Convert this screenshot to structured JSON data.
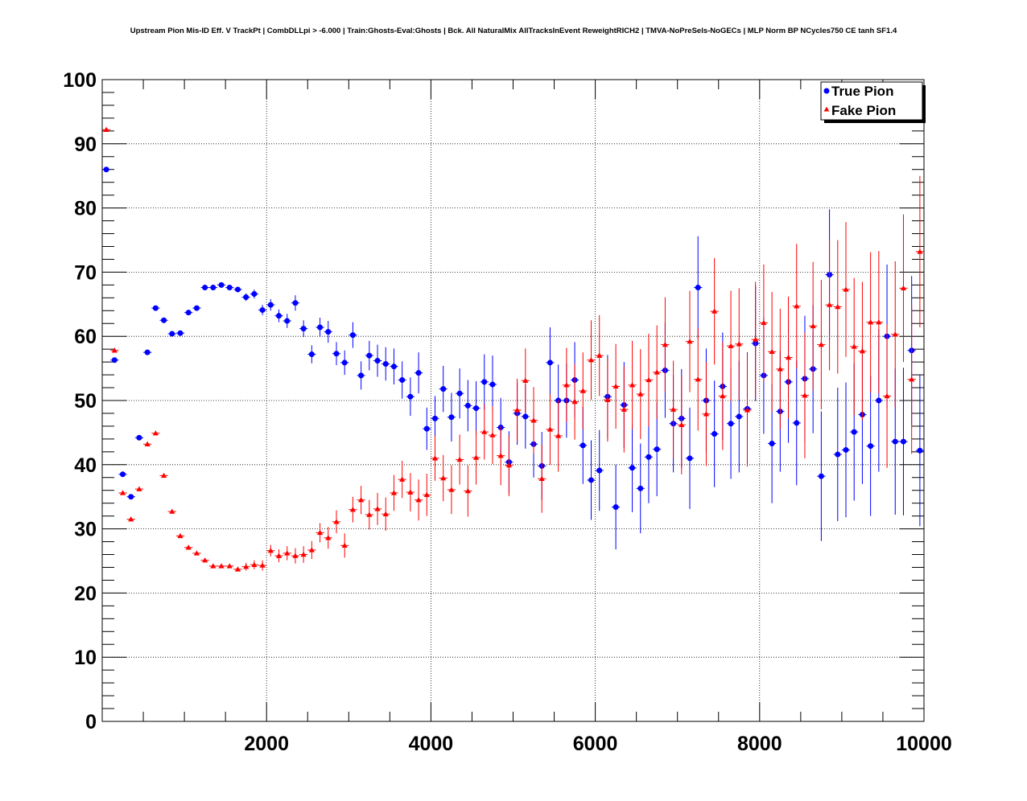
{
  "chart_data": {
    "type": "scatter",
    "title": "Upstream Pion Mis-ID Eff. V TrackPt | CombDLLpi > -6.000 | Train:Ghosts-Eval:Ghosts | Bck. All NaturalMix AllTracksInEvent ReweightRICH2 | TMVA-NoPreSels-NoGECs | MLP Norm BP NCycles750 CE tanh SF1.4",
    "xlabel": "",
    "ylabel": "",
    "xlim": [
      0,
      10000
    ],
    "ylim": [
      0,
      100
    ],
    "x_ticks": [
      "2000",
      "4000",
      "6000",
      "8000",
      "10000"
    ],
    "y_ticks": [
      "0",
      "10",
      "20",
      "30",
      "40",
      "50",
      "60",
      "70",
      "80",
      "90",
      "100"
    ],
    "grid": true,
    "legend_position": "top-right",
    "series": [
      {
        "name": "True Pion",
        "color": "#0000ff",
        "marker": "circle",
        "points": [
          [
            50,
            86.0,
            0
          ],
          [
            150,
            56.3,
            0
          ],
          [
            250,
            38.5,
            0
          ],
          [
            350,
            35.0,
            0
          ],
          [
            450,
            44.2,
            0
          ],
          [
            550,
            57.5,
            0
          ],
          [
            650,
            64.4,
            0
          ],
          [
            750,
            62.5,
            0
          ],
          [
            850,
            60.4,
            0
          ],
          [
            950,
            60.5,
            0
          ],
          [
            1050,
            63.7,
            0
          ],
          [
            1150,
            64.4,
            0
          ],
          [
            1250,
            67.6,
            0
          ],
          [
            1350,
            67.6,
            0
          ],
          [
            1450,
            68.0,
            0
          ],
          [
            1550,
            67.6,
            0
          ],
          [
            1650,
            67.3,
            0
          ],
          [
            1750,
            66.1,
            0.6
          ],
          [
            1850,
            66.6,
            0.7
          ],
          [
            1950,
            64.1,
            0.8
          ],
          [
            2050,
            64.9,
            0.9
          ],
          [
            2150,
            63.2,
            1.0
          ],
          [
            2250,
            62.4,
            1.1
          ],
          [
            2350,
            65.2,
            1.2
          ],
          [
            2450,
            61.2,
            1.3
          ],
          [
            2550,
            57.2,
            1.4
          ],
          [
            2650,
            61.4,
            1.5
          ],
          [
            2750,
            60.7,
            1.7
          ],
          [
            2850,
            57.3,
            1.8
          ],
          [
            2950,
            55.9,
            1.9
          ],
          [
            3050,
            60.2,
            2.0
          ],
          [
            3150,
            53.9,
            2.2
          ],
          [
            3250,
            57.0,
            2.3
          ],
          [
            3350,
            56.2,
            2.5
          ],
          [
            3450,
            55.7,
            2.6
          ],
          [
            3550,
            55.3,
            2.8
          ],
          [
            3650,
            53.2,
            2.9
          ],
          [
            3750,
            50.6,
            3.0
          ],
          [
            3850,
            54.3,
            3.2
          ],
          [
            3950,
            45.6,
            3.3
          ],
          [
            4050,
            47.2,
            3.5
          ],
          [
            4150,
            51.8,
            3.6
          ],
          [
            4250,
            47.4,
            3.8
          ],
          [
            4350,
            51.1,
            3.9
          ],
          [
            4450,
            49.2,
            4.0
          ],
          [
            4550,
            48.8,
            4.2
          ],
          [
            4650,
            52.9,
            4.3
          ],
          [
            4750,
            52.5,
            4.5
          ],
          [
            4850,
            45.8,
            4.6
          ],
          [
            4950,
            40.4,
            4.8
          ],
          [
            5050,
            48.0,
            4.9
          ],
          [
            5150,
            47.5,
            5.0
          ],
          [
            5250,
            43.2,
            5.2
          ],
          [
            5350,
            39.8,
            5.3
          ],
          [
            5450,
            55.9,
            5.5
          ],
          [
            5550,
            50.0,
            5.6
          ],
          [
            5650,
            50.0,
            5.8
          ],
          [
            5750,
            53.2,
            5.9
          ],
          [
            5850,
            43.0,
            6.0
          ],
          [
            5950,
            37.6,
            6.2
          ],
          [
            6050,
            39.1,
            6.3
          ],
          [
            6150,
            50.6,
            6.5
          ],
          [
            6250,
            33.4,
            6.6
          ],
          [
            6350,
            49.3,
            6.7
          ],
          [
            6450,
            39.5,
            6.9
          ],
          [
            6550,
            36.3,
            7.0
          ],
          [
            6650,
            41.2,
            7.2
          ],
          [
            6750,
            42.4,
            7.3
          ],
          [
            6850,
            54.7,
            7.4
          ],
          [
            6950,
            46.4,
            7.6
          ],
          [
            7050,
            47.2,
            7.7
          ],
          [
            7150,
            41.0,
            7.9
          ],
          [
            7250,
            67.6,
            8.0
          ],
          [
            7350,
            50.0,
            8.1
          ],
          [
            7450,
            44.8,
            8.3
          ],
          [
            7550,
            52.2,
            8.4
          ],
          [
            7650,
            46.4,
            8.6
          ],
          [
            7750,
            47.5,
            8.7
          ],
          [
            7850,
            48.7,
            8.8
          ],
          [
            7950,
            58.9,
            9.0
          ],
          [
            8050,
            53.9,
            9.1
          ],
          [
            8150,
            43.3,
            9.3
          ],
          [
            8250,
            48.3,
            9.4
          ],
          [
            8350,
            52.9,
            9.5
          ],
          [
            8450,
            46.5,
            9.7
          ],
          [
            8550,
            53.4,
            9.8
          ],
          [
            8650,
            54.9,
            10.0
          ],
          [
            8750,
            38.2,
            10.1
          ],
          [
            8850,
            69.6,
            10.2
          ],
          [
            8950,
            41.6,
            10.4
          ],
          [
            9050,
            42.3,
            10.5
          ],
          [
            9150,
            45.1,
            10.7
          ],
          [
            9250,
            47.8,
            10.8
          ],
          [
            9350,
            42.9,
            10.9
          ],
          [
            9450,
            50.0,
            11.1
          ],
          [
            9550,
            60.0,
            11.2
          ],
          [
            9650,
            43.6,
            11.4
          ],
          [
            9750,
            43.6,
            11.5
          ],
          [
            9850,
            57.8,
            11.6
          ],
          [
            9950,
            42.2,
            11.8
          ]
        ]
      },
      {
        "name": "Fake Pion",
        "color": "#ff0000",
        "marker": "triangle",
        "points": [
          [
            50,
            92.2,
            0
          ],
          [
            150,
            57.8,
            0
          ],
          [
            250,
            35.6,
            0
          ],
          [
            350,
            31.5,
            0
          ],
          [
            450,
            36.2,
            0
          ],
          [
            550,
            43.2,
            0
          ],
          [
            650,
            44.9,
            0
          ],
          [
            750,
            38.3,
            0
          ],
          [
            850,
            32.7,
            0
          ],
          [
            950,
            28.9,
            0
          ],
          [
            1050,
            27.1,
            0
          ],
          [
            1150,
            26.2,
            0
          ],
          [
            1250,
            25.1,
            0
          ],
          [
            1350,
            24.2,
            0
          ],
          [
            1450,
            24.2,
            0
          ],
          [
            1550,
            24.2,
            0
          ],
          [
            1650,
            23.7,
            0
          ],
          [
            1750,
            24.1,
            0.6
          ],
          [
            1850,
            24.4,
            0.7
          ],
          [
            1950,
            24.3,
            0.8
          ],
          [
            2050,
            26.6,
            0.9
          ],
          [
            2150,
            25.8,
            1.0
          ],
          [
            2250,
            26.2,
            1.1
          ],
          [
            2350,
            25.8,
            1.2
          ],
          [
            2450,
            26.0,
            1.3
          ],
          [
            2550,
            26.7,
            1.4
          ],
          [
            2650,
            29.4,
            1.5
          ],
          [
            2750,
            28.6,
            1.7
          ],
          [
            2850,
            31.1,
            1.8
          ],
          [
            2950,
            27.4,
            1.9
          ],
          [
            3050,
            33.0,
            2.0
          ],
          [
            3150,
            34.5,
            2.2
          ],
          [
            3250,
            32.2,
            2.3
          ],
          [
            3350,
            33.1,
            2.5
          ],
          [
            3450,
            32.3,
            2.6
          ],
          [
            3550,
            35.6,
            2.8
          ],
          [
            3650,
            37.7,
            2.9
          ],
          [
            3750,
            35.7,
            3.0
          ],
          [
            3850,
            34.5,
            3.2
          ],
          [
            3950,
            35.3,
            3.3
          ],
          [
            4050,
            41.0,
            3.5
          ],
          [
            4150,
            37.9,
            3.6
          ],
          [
            4250,
            36.1,
            3.8
          ],
          [
            4350,
            40.8,
            3.9
          ],
          [
            4450,
            35.9,
            4.0
          ],
          [
            4550,
            41.1,
            4.2
          ],
          [
            4650,
            45.1,
            4.3
          ],
          [
            4750,
            44.6,
            4.5
          ],
          [
            4850,
            41.4,
            4.6
          ],
          [
            4950,
            39.9,
            4.8
          ],
          [
            5050,
            48.5,
            4.9
          ],
          [
            5150,
            53.1,
            5.0
          ],
          [
            5250,
            46.9,
            5.2
          ],
          [
            5350,
            37.8,
            5.3
          ],
          [
            5450,
            45.5,
            5.5
          ],
          [
            5550,
            44.5,
            5.6
          ],
          [
            5650,
            52.4,
            5.8
          ],
          [
            5750,
            49.8,
            5.9
          ],
          [
            5850,
            51.5,
            6.0
          ],
          [
            5950,
            56.3,
            6.2
          ],
          [
            6050,
            57.0,
            6.3
          ],
          [
            6150,
            50.1,
            6.5
          ],
          [
            6250,
            52.2,
            6.6
          ],
          [
            6350,
            48.6,
            6.7
          ],
          [
            6450,
            52.4,
            6.9
          ],
          [
            6550,
            51.0,
            7.0
          ],
          [
            6650,
            53.2,
            7.2
          ],
          [
            6750,
            54.4,
            7.3
          ],
          [
            6850,
            58.7,
            7.4
          ],
          [
            6950,
            48.6,
            7.6
          ],
          [
            7050,
            46.2,
            7.7
          ],
          [
            7150,
            59.2,
            7.9
          ],
          [
            7250,
            53.3,
            8.0
          ],
          [
            7350,
            47.9,
            8.1
          ],
          [
            7450,
            63.9,
            8.3
          ],
          [
            7550,
            50.7,
            8.4
          ],
          [
            7650,
            58.5,
            8.6
          ],
          [
            7750,
            58.8,
            8.7
          ],
          [
            7850,
            48.5,
            8.8
          ],
          [
            7950,
            59.5,
            9.0
          ],
          [
            8050,
            62.1,
            9.1
          ],
          [
            8150,
            57.6,
            9.3
          ],
          [
            8250,
            54.9,
            9.4
          ],
          [
            8350,
            56.7,
            9.5
          ],
          [
            8450,
            64.7,
            9.7
          ],
          [
            8550,
            50.8,
            9.8
          ],
          [
            8650,
            61.6,
            10.0
          ],
          [
            8750,
            58.7,
            10.1
          ],
          [
            8850,
            64.9,
            10.2
          ],
          [
            8950,
            64.6,
            10.4
          ],
          [
            9050,
            67.3,
            10.5
          ],
          [
            9150,
            58.4,
            10.7
          ],
          [
            9250,
            57.7,
            10.8
          ],
          [
            9350,
            62.2,
            10.9
          ],
          [
            9450,
            62.2,
            11.1
          ],
          [
            9550,
            50.7,
            11.2
          ],
          [
            9650,
            60.3,
            11.4
          ],
          [
            9750,
            67.5,
            11.5
          ],
          [
            9850,
            53.3,
            11.6
          ],
          [
            9950,
            73.2,
            11.8
          ]
        ]
      }
    ]
  }
}
